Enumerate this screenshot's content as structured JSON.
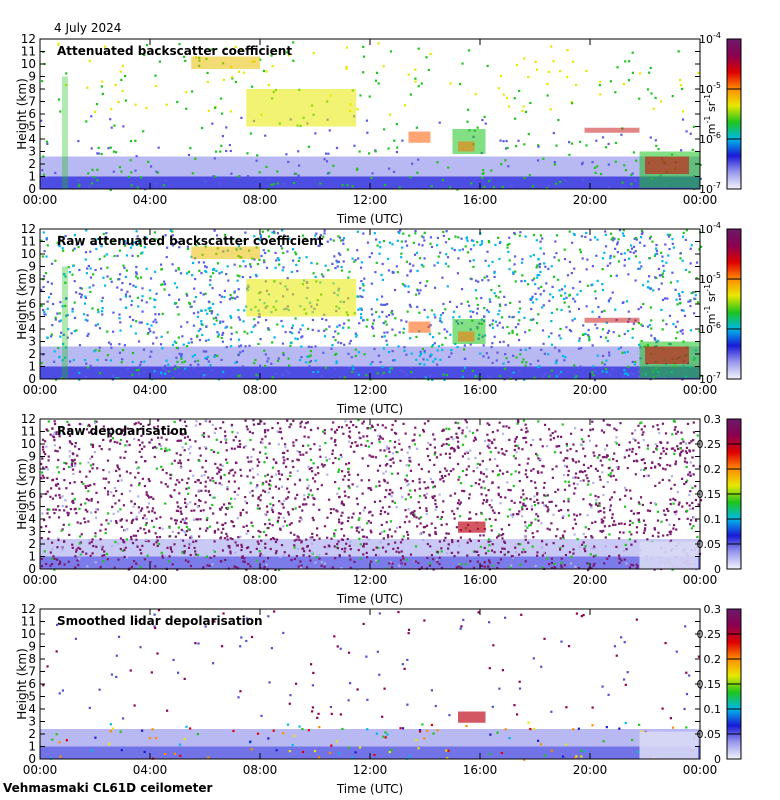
{
  "date": "4 July 2024",
  "footer": "Vehmasmaki CL61D ceilometer",
  "x_axis": {
    "label": "Time (UTC)",
    "ticks": [
      "00:00",
      "04:00",
      "08:00",
      "12:00",
      "16:00",
      "20:00",
      "00:00"
    ],
    "range_hours": [
      0,
      24
    ]
  },
  "y_axis": {
    "label": "Height (km)",
    "ticks": [
      0,
      1,
      2,
      3,
      4,
      5,
      6,
      7,
      8,
      9,
      10,
      11,
      12
    ],
    "range_km": [
      0,
      12
    ]
  },
  "colors": {
    "colormap": [
      "#f4f4fb",
      "#9a9aee",
      "#1a1ad6",
      "#00b8e8",
      "#1ec41e",
      "#e8e800",
      "#ff8c00",
      "#e00000",
      "#8b0050",
      "#6a1a6a"
    ],
    "frame": "#000000",
    "background": "#ffffff"
  },
  "chart_data": [
    {
      "type": "heatmap",
      "title": "Attenuated backscatter coefficient",
      "xlabel": "Time (UTC)",
      "ylabel": "Height (km)",
      "xlim": [
        0,
        24
      ],
      "ylim": [
        0,
        12
      ],
      "colorbar": {
        "scale": "log",
        "range": [
          1e-07,
          0.0001
        ],
        "tick_labels": [
          "10",
          "10",
          "10",
          "10"
        ],
        "tick_exponents": [
          "-7",
          "-6",
          "-5",
          "-4"
        ],
        "unit_parts": [
          "m",
          "-1",
          " sr",
          "-1"
        ]
      }
    },
    {
      "type": "heatmap",
      "title": "Raw attenuated backscatter coefficient",
      "xlabel": "Time (UTC)",
      "ylabel": "Height (km)",
      "xlim": [
        0,
        24
      ],
      "ylim": [
        0,
        12
      ],
      "colorbar": {
        "scale": "log",
        "range": [
          1e-07,
          0.0001
        ],
        "tick_labels": [
          "10",
          "10",
          "10",
          "10"
        ],
        "tick_exponents": [
          "-7",
          "-6",
          "-5",
          "-4"
        ],
        "unit_parts": [
          "m",
          "-1",
          " sr",
          "-1"
        ]
      }
    },
    {
      "type": "heatmap",
      "title": "Raw depolarisation",
      "xlabel": "Time (UTC)",
      "ylabel": "Height (km)",
      "xlim": [
        0,
        24
      ],
      "ylim": [
        0,
        12
      ],
      "colorbar": {
        "scale": "linear",
        "range": [
          0,
          0.3
        ],
        "tick_labels": [
          "0",
          "0.05",
          "0.1",
          "0.15",
          "0.2",
          "0.25",
          "0.3"
        ]
      }
    },
    {
      "type": "heatmap",
      "title": "Smoothed lidar depolarisation",
      "xlabel": "Time (UTC)",
      "ylabel": "Height (km)",
      "xlim": [
        0,
        24
      ],
      "ylim": [
        0,
        12
      ],
      "colorbar": {
        "scale": "linear",
        "range": [
          0,
          0.3
        ],
        "tick_labels": [
          "0",
          "0.05",
          "0.1",
          "0.15",
          "0.2",
          "0.25",
          "0.3"
        ]
      }
    }
  ]
}
